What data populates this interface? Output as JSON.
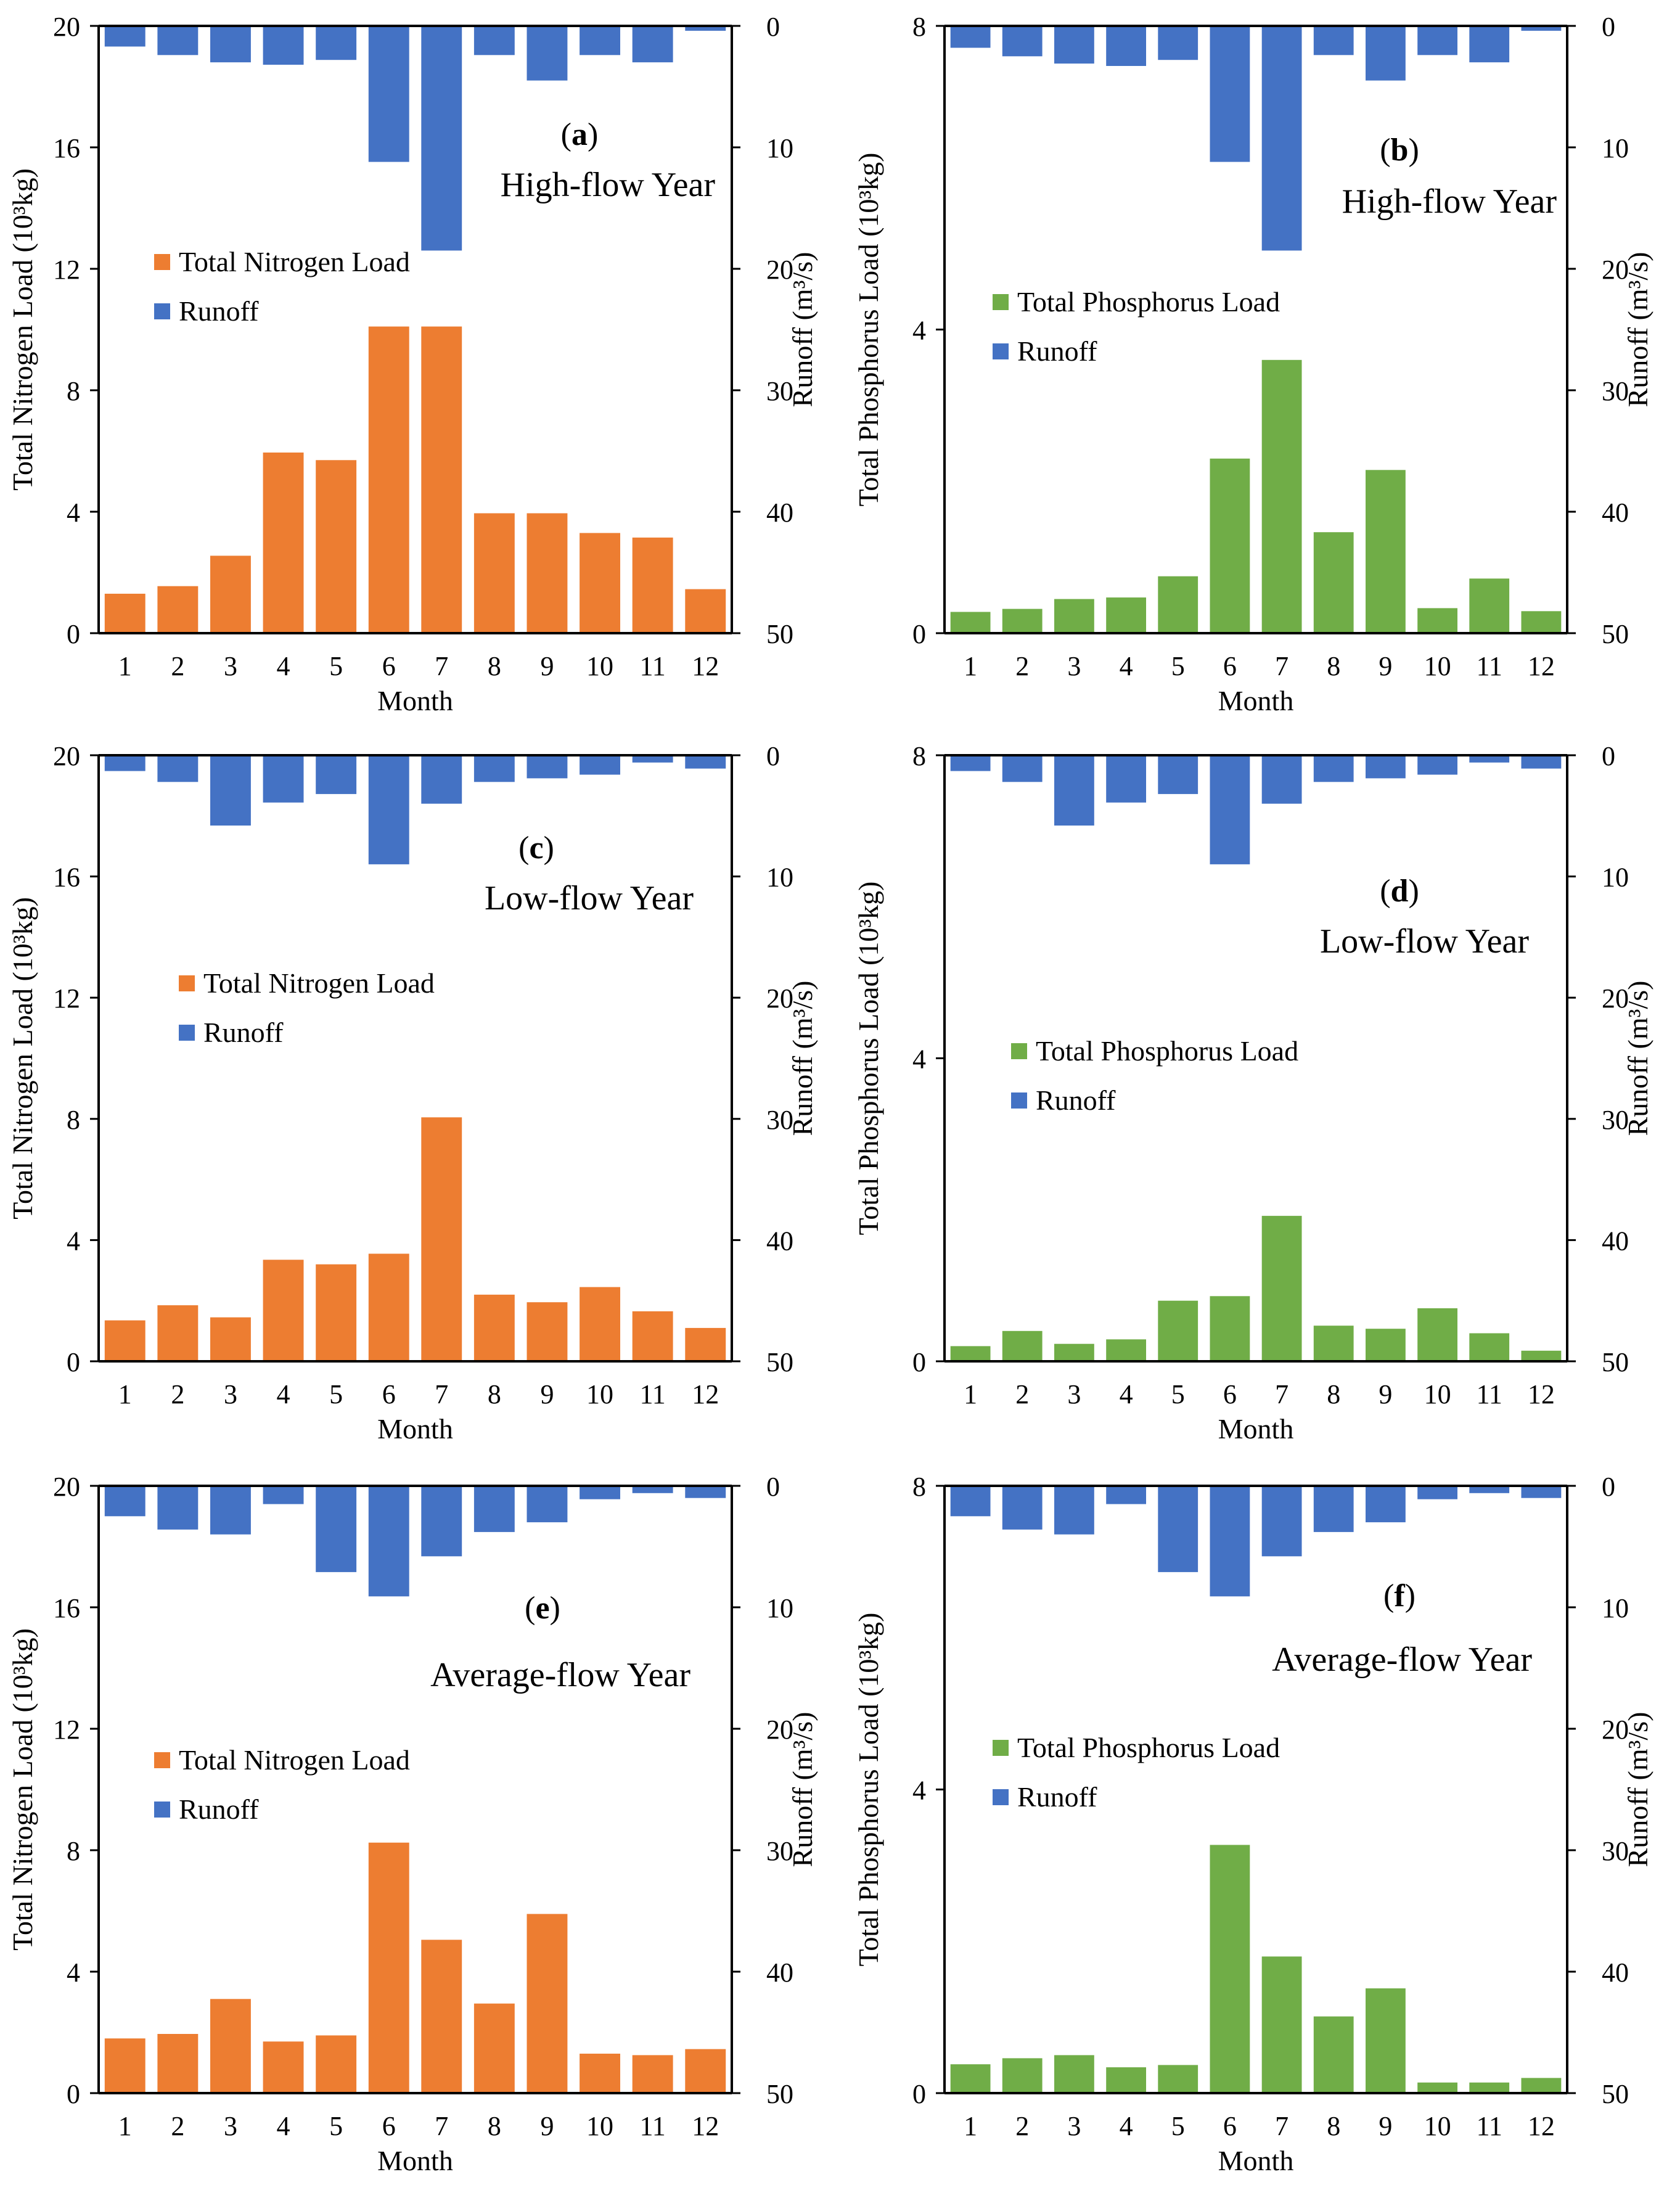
{
  "colors": {
    "nitrogen": "#ED7D31",
    "phosphorus": "#70AD47",
    "runoff": "#4472C4",
    "axis": "#000000"
  },
  "chart_data": [
    {
      "type": "bar",
      "panel_label": "a",
      "subtitle": "High-flow Year",
      "categories": [
        "1",
        "2",
        "3",
        "4",
        "5",
        "6",
        "7",
        "8",
        "9",
        "10",
        "11",
        "12"
      ],
      "xlabel": "Month",
      "ylabel": "Total Nitrogen Load (10³kg)",
      "y2label": "Runoff (m³/s)",
      "ylim": [
        0,
        20
      ],
      "yticks": [
        "0",
        "4",
        "8",
        "12",
        "16",
        "20"
      ],
      "y2lim": [
        0,
        50
      ],
      "y2_inverted": true,
      "y2ticks": [
        "0",
        "10",
        "20",
        "30",
        "40",
        "50"
      ],
      "legend_position": "middle-left",
      "series": [
        {
          "name": "Total Nitrogen Load",
          "color_key": "nitrogen",
          "axis": "left",
          "values": [
            1.3,
            1.55,
            2.55,
            5.95,
            5.7,
            10.1,
            10.1,
            3.95,
            3.95,
            3.3,
            3.15,
            1.45
          ]
        },
        {
          "name": "Runoff",
          "color_key": "runoff",
          "axis": "right",
          "values": [
            1.7,
            2.4,
            3.0,
            3.2,
            2.8,
            11.2,
            18.5,
            2.4,
            4.5,
            2.4,
            3.0,
            0.4
          ]
        }
      ]
    },
    {
      "type": "bar",
      "panel_label": "b",
      "subtitle": "High-flow Year",
      "categories": [
        "1",
        "2",
        "3",
        "4",
        "5",
        "6",
        "7",
        "8",
        "9",
        "10",
        "11",
        "12"
      ],
      "xlabel": "Month",
      "ylabel": "Total Phosphorus Load (10³kg)",
      "y2label": "Runoff (m³/s)",
      "ylim": [
        0,
        8
      ],
      "yticks": [
        "0",
        "4",
        "8"
      ],
      "y2lim": [
        0,
        50
      ],
      "y2_inverted": true,
      "y2ticks": [
        "0",
        "10",
        "20",
        "30",
        "40",
        "50"
      ],
      "legend_position": "middle-left",
      "series": [
        {
          "name": "Total Phosphorus Load",
          "color_key": "phosphorus",
          "axis": "left",
          "values": [
            0.28,
            0.32,
            0.45,
            0.47,
            0.75,
            2.3,
            3.6,
            1.33,
            2.15,
            0.33,
            0.72,
            0.29
          ]
        },
        {
          "name": "Runoff",
          "color_key": "runoff",
          "axis": "right",
          "values": [
            1.8,
            2.5,
            3.1,
            3.3,
            2.8,
            11.2,
            18.5,
            2.4,
            4.5,
            2.4,
            3.0,
            0.4
          ]
        }
      ]
    },
    {
      "type": "bar",
      "panel_label": "c",
      "subtitle": "Low-flow Year",
      "categories": [
        "1",
        "2",
        "3",
        "4",
        "5",
        "6",
        "7",
        "8",
        "9",
        "10",
        "11",
        "12"
      ],
      "xlabel": "Month",
      "ylabel": "Total Nitrogen Load (10³kg)",
      "y2label": "Runoff (m³/s)",
      "ylim": [
        0,
        20
      ],
      "yticks": [
        "0",
        "4",
        "8",
        "12",
        "16",
        "20"
      ],
      "y2lim": [
        0,
        50
      ],
      "y2_inverted": true,
      "y2ticks": [
        "0",
        "10",
        "20",
        "30",
        "40",
        "50"
      ],
      "legend_position": "middle-left",
      "series": [
        {
          "name": "Total Nitrogen Load",
          "color_key": "nitrogen",
          "axis": "left",
          "values": [
            1.35,
            1.85,
            1.45,
            3.35,
            3.2,
            3.55,
            8.05,
            2.2,
            1.95,
            2.45,
            1.65,
            1.1
          ]
        },
        {
          "name": "Runoff",
          "color_key": "runoff",
          "axis": "right",
          "values": [
            1.3,
            2.2,
            5.8,
            3.9,
            3.2,
            9.0,
            4.0,
            2.2,
            1.9,
            1.6,
            0.6,
            1.1
          ]
        }
      ]
    },
    {
      "type": "bar",
      "panel_label": "d",
      "subtitle": "Low-flow Year",
      "categories": [
        "1",
        "2",
        "3",
        "4",
        "5",
        "6",
        "7",
        "8",
        "9",
        "10",
        "11",
        "12"
      ],
      "xlabel": "Month",
      "ylabel": "Total Phosphorus Load (10³kg)",
      "y2label": "Runoff (m³/s)",
      "ylim": [
        0,
        8
      ],
      "yticks": [
        "0",
        "4",
        "8"
      ],
      "y2lim": [
        0,
        50
      ],
      "y2_inverted": true,
      "y2ticks": [
        "0",
        "10",
        "20",
        "30",
        "40",
        "50"
      ],
      "legend_position": "middle-left",
      "series": [
        {
          "name": "Total Phosphorus Load",
          "color_key": "phosphorus",
          "axis": "left",
          "values": [
            0.2,
            0.4,
            0.23,
            0.29,
            0.8,
            0.86,
            1.92,
            0.47,
            0.43,
            0.7,
            0.37,
            0.14
          ]
        },
        {
          "name": "Runoff",
          "color_key": "runoff",
          "axis": "right",
          "values": [
            1.3,
            2.2,
            5.8,
            3.9,
            3.2,
            9.0,
            4.0,
            2.2,
            1.9,
            1.6,
            0.6,
            1.1
          ]
        }
      ]
    },
    {
      "type": "bar",
      "panel_label": "e",
      "subtitle": "Average-flow Year",
      "categories": [
        "1",
        "2",
        "3",
        "4",
        "5",
        "6",
        "7",
        "8",
        "9",
        "10",
        "11",
        "12"
      ],
      "xlabel": "Month",
      "ylabel": "Total Nitrogen Load (10³kg)",
      "y2label": "Runoff (m³/s)",
      "ylim": [
        0,
        20
      ],
      "yticks": [
        "0",
        "4",
        "8",
        "12",
        "16",
        "20"
      ],
      "y2lim": [
        0,
        50
      ],
      "y2_inverted": true,
      "y2ticks": [
        "0",
        "10",
        "20",
        "30",
        "40",
        "50"
      ],
      "legend_position": "middle-left",
      "series": [
        {
          "name": "Total Nitrogen Load",
          "color_key": "nitrogen",
          "axis": "left",
          "values": [
            1.8,
            1.95,
            3.1,
            1.7,
            1.9,
            8.25,
            5.05,
            2.95,
            5.9,
            1.3,
            1.25,
            1.45
          ]
        },
        {
          "name": "Runoff",
          "color_key": "runoff",
          "axis": "right",
          "values": [
            2.5,
            3.6,
            4.0,
            1.5,
            7.1,
            9.1,
            5.8,
            3.8,
            3.0,
            1.1,
            0.6,
            1.0
          ]
        }
      ]
    },
    {
      "type": "bar",
      "panel_label": "f",
      "subtitle": "Average-flow Year",
      "categories": [
        "1",
        "2",
        "3",
        "4",
        "5",
        "6",
        "7",
        "8",
        "9",
        "10",
        "11",
        "12"
      ],
      "xlabel": "Month",
      "ylabel": "Total Phosphorus Load (10³kg)",
      "y2label": "Runoff (m³/s)",
      "ylim": [
        0,
        8
      ],
      "yticks": [
        "0",
        "4",
        "8"
      ],
      "y2lim": [
        0,
        50
      ],
      "y2_inverted": true,
      "y2ticks": [
        "0",
        "10",
        "20",
        "30",
        "40",
        "50"
      ],
      "legend_position": "middle-left",
      "series": [
        {
          "name": "Total Phosphorus Load",
          "color_key": "phosphorus",
          "axis": "left",
          "values": [
            0.38,
            0.46,
            0.5,
            0.34,
            0.37,
            3.27,
            1.8,
            1.01,
            1.38,
            0.14,
            0.14,
            0.2
          ]
        },
        {
          "name": "Runoff",
          "color_key": "runoff",
          "axis": "right",
          "values": [
            2.5,
            3.6,
            4.0,
            1.5,
            7.1,
            9.1,
            5.8,
            3.8,
            3.0,
            1.1,
            0.6,
            1.0
          ]
        }
      ]
    }
  ]
}
